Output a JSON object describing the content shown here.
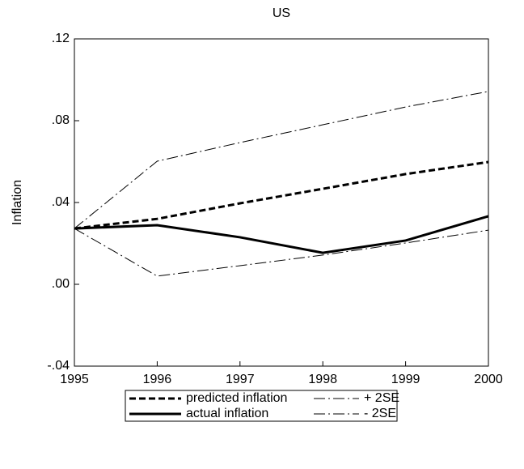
{
  "chart_data": {
    "type": "line",
    "title": "US",
    "y_label": "Inflation",
    "x": [
      1995,
      1996,
      1997,
      1998,
      1999,
      2000
    ],
    "xlim": [
      1995,
      2000
    ],
    "xticks": [
      1995,
      1996,
      1997,
      1998,
      1999,
      2000
    ],
    "ylim": [
      -0.04,
      0.12
    ],
    "yticks": [
      {
        "value": -0.04,
        "label": "-.04"
      },
      {
        "value": 0,
        "label": ".00"
      },
      {
        "value": 0.04,
        "label": ".04"
      },
      {
        "value": 0.08,
        "label": ".08"
      },
      {
        "value": 0.12,
        "label": ".12"
      }
    ],
    "grid": false,
    "legend": "bottom",
    "series": [
      {
        "name": "predicted inflation",
        "color": "#000000",
        "line_style": "dashed",
        "line_width": 3,
        "values": [
          0.0273,
          0.032,
          0.0396,
          0.0467,
          0.0539,
          0.0598
        ]
      },
      {
        "name": "+ 2SE",
        "color": "#000000",
        "line_style": "dashdot",
        "line_width": 1,
        "values": [
          0.0273,
          0.0602,
          0.0693,
          0.078,
          0.0867,
          0.0943
        ]
      },
      {
        "name": "actual inflation",
        "color": "#000000",
        "line_style": "solid",
        "line_width": 3,
        "values": [
          0.0273,
          0.0289,
          0.023,
          0.0154,
          0.0214,
          0.0333
        ]
      },
      {
        "name": "- 2SE",
        "color": "#000000",
        "line_style": "dashdot",
        "line_width": 1,
        "values": [
          0.0273,
          0.004,
          0.0091,
          0.0143,
          0.0202,
          0.0265
        ]
      }
    ]
  }
}
